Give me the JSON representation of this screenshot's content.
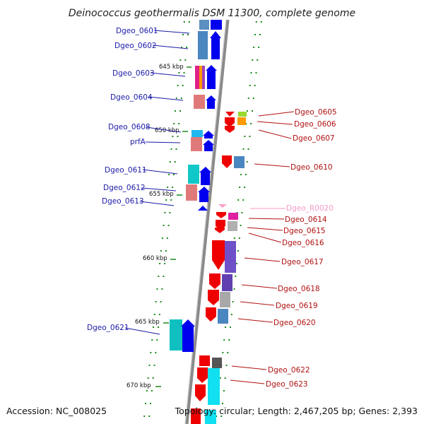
{
  "title": "Deinococcus geothermalis DSM 11300, complete genome",
  "footer": {
    "accession": "Accession: NC_008025",
    "summary": "Topology: circular; Length: 2,467,205 bp; Genes: 2,393"
  },
  "colors": {
    "forward_strand": "#0000ee",
    "reverse_strand": "#ee0000",
    "backbone": "#8a8a8a",
    "tick": "#1a8a1a",
    "left_label": "#1a1aa8",
    "right_label": "#b01010",
    "rna_label": "#f39ac6"
  },
  "scale_labels": [
    "645 kbp",
    "650 kbp",
    "655 kbp",
    "660 kbp",
    "665 kbp",
    "670 kbp"
  ],
  "left_genes": [
    {
      "label": "Dgeo_0601"
    },
    {
      "label": "Dgeo_0602"
    },
    {
      "label": "Dgeo_0603"
    },
    {
      "label": "Dgeo_0604"
    },
    {
      "label": "Dgeo_0608"
    },
    {
      "label": "prfA"
    },
    {
      "label": "Dgeo_0611"
    },
    {
      "label": "Dgeo_0612"
    },
    {
      "label": "Dgeo_0613"
    },
    {
      "label": "Dgeo_0621"
    }
  ],
  "right_genes": [
    {
      "label": "Dgeo_0605"
    },
    {
      "label": "Dgeo_0606"
    },
    {
      "label": "Dgeo_0607"
    },
    {
      "label": "Dgeo_0610"
    },
    {
      "label": "Dgeo_R0020"
    },
    {
      "label": "Dgeo_0614"
    },
    {
      "label": "Dgeo_0615"
    },
    {
      "label": "Dgeo_0616"
    },
    {
      "label": "Dgeo_0617"
    },
    {
      "label": "Dgeo_0618"
    },
    {
      "label": "Dgeo_0619"
    },
    {
      "label": "Dgeo_0620"
    },
    {
      "label": "Dgeo_0622"
    },
    {
      "label": "Dgeo_0623"
    }
  ]
}
